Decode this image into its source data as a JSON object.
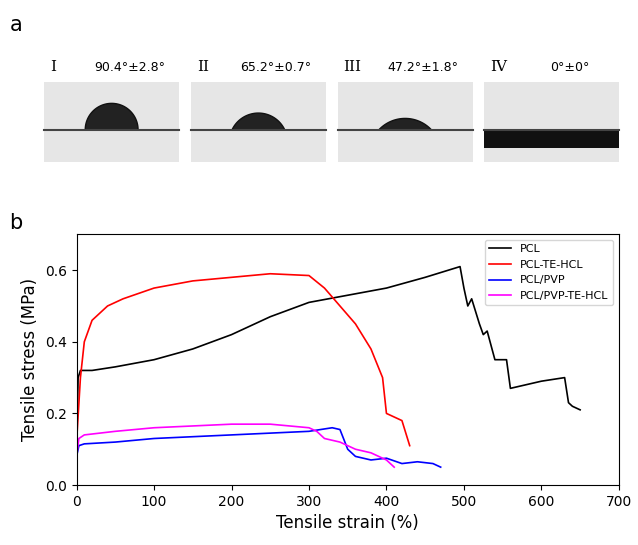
{
  "contact_angles": {
    "panel_label": "a",
    "samples": [
      {
        "label": "I",
        "angle": "90.4°±2.8°"
      },
      {
        "label": "II",
        "angle": "65.2°±0.7°"
      },
      {
        "label": "III",
        "angle": "47.2°±1.8°"
      },
      {
        "label": "IV",
        "angle": "0°±0°"
      }
    ]
  },
  "chart_data": {
    "type": "line",
    "panel_label": "b",
    "x_label": "Tensile strain (%)",
    "y_label": "Tensile stress (MPa)",
    "xlim": [
      0,
      700
    ],
    "xticks": [
      0,
      100,
      200,
      300,
      400,
      500,
      600,
      700
    ],
    "ylim": [
      0,
      0.7
    ],
    "yticks": [
      {
        "value": 0,
        "label": "0.0"
      },
      {
        "value": 0.2,
        "label": "0.2"
      },
      {
        "value": 0.4,
        "label": "0.4"
      },
      {
        "value": 0.6,
        "label": "0.6"
      }
    ],
    "legend": "upper right",
    "grid": false,
    "series": [
      {
        "name": "PCL",
        "color": "#000000",
        "x": [
          0,
          2,
          5,
          20,
          50,
          100,
          150,
          200,
          250,
          300,
          350,
          400,
          450,
          480,
          495,
          500,
          505,
          510,
          520,
          525,
          530,
          540,
          555,
          560,
          600,
          630,
          635,
          640,
          650
        ],
        "values": [
          0.1,
          0.3,
          0.32,
          0.32,
          0.33,
          0.35,
          0.38,
          0.42,
          0.47,
          0.51,
          0.53,
          0.55,
          0.58,
          0.6,
          0.61,
          0.55,
          0.5,
          0.52,
          0.45,
          0.42,
          0.43,
          0.35,
          0.35,
          0.27,
          0.29,
          0.3,
          0.23,
          0.22,
          0.21
        ]
      },
      {
        "name": "PCL-TE-HCL",
        "color": "#ff0000",
        "x": [
          0,
          5,
          10,
          20,
          40,
          60,
          100,
          150,
          200,
          250,
          300,
          320,
          340,
          360,
          380,
          395,
          400,
          410,
          420,
          430
        ],
        "values": [
          0.12,
          0.3,
          0.4,
          0.46,
          0.5,
          0.52,
          0.55,
          0.57,
          0.58,
          0.59,
          0.585,
          0.55,
          0.5,
          0.45,
          0.38,
          0.3,
          0.2,
          0.19,
          0.18,
          0.11
        ]
      },
      {
        "name": "PCL/PVP",
        "color": "#0000ff",
        "x": [
          0,
          3,
          10,
          50,
          100,
          150,
          200,
          250,
          300,
          330,
          340,
          350,
          360,
          380,
          400,
          420,
          440,
          460,
          470
        ],
        "values": [
          0.08,
          0.11,
          0.115,
          0.12,
          0.13,
          0.135,
          0.14,
          0.145,
          0.15,
          0.16,
          0.155,
          0.1,
          0.08,
          0.07,
          0.075,
          0.06,
          0.065,
          0.06,
          0.05
        ]
      },
      {
        "name": "PCL/PVP-TE-HCL",
        "color": "#ff00ff",
        "x": [
          0,
          3,
          10,
          50,
          100,
          150,
          200,
          250,
          300,
          310,
          320,
          340,
          360,
          380,
          400,
          410
        ],
        "values": [
          0.08,
          0.13,
          0.14,
          0.15,
          0.16,
          0.165,
          0.17,
          0.17,
          0.16,
          0.15,
          0.13,
          0.12,
          0.1,
          0.09,
          0.07,
          0.05
        ]
      }
    ]
  }
}
